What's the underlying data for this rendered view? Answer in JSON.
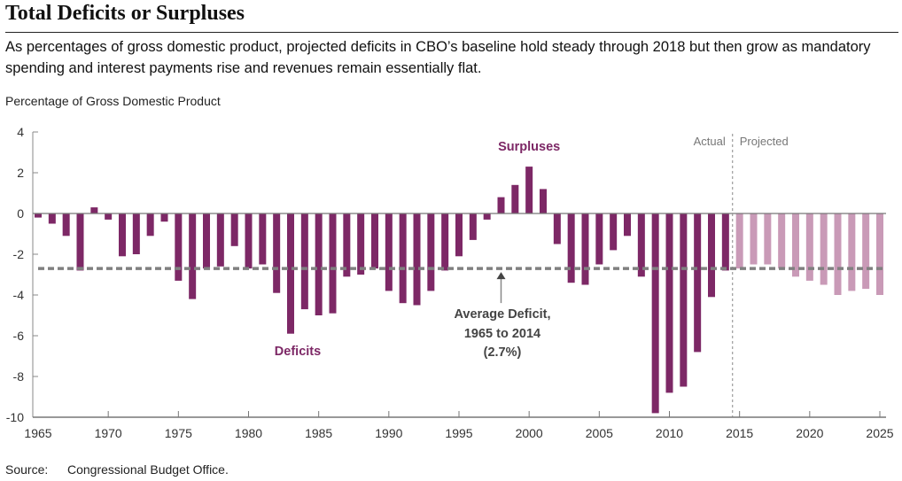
{
  "header": {
    "title": "Total Deficits or Surpluses",
    "subtitle": "As percentages of gross domestic product, projected deficits in CBO’s baseline hold steady through 2018 but then grow as mandatory spending and interest payments rise and revenues remain essentially flat."
  },
  "footer": {
    "source_label": "Source:",
    "source_text": "Congressional Budget Office."
  },
  "colors": {
    "actual": "#7d2866",
    "projected": "#c99ab7",
    "average_line": "#808080",
    "axis": "#666666",
    "annotation_text": "#7d2866",
    "average_text": "#444444"
  },
  "chart_data": {
    "type": "bar",
    "title": "Total Deficits or Surpluses",
    "xlabel": "",
    "ylabel": "Percentage of Gross Domestic Product",
    "ylim": [
      -10,
      4
    ],
    "yticks": [
      4,
      2,
      0,
      -2,
      -4,
      -6,
      -8,
      -10
    ],
    "ytick_labels": [
      "4",
      "2",
      "0",
      "-2",
      "-4",
      "-6",
      "-8",
      "-10"
    ],
    "xlim": [
      1965,
      2025
    ],
    "xticks": [
      1965,
      1970,
      1975,
      1980,
      1985,
      1990,
      1995,
      2000,
      2005,
      2010,
      2015,
      2020,
      2025
    ],
    "xtick_labels": [
      "1965",
      "1970",
      "1975",
      "1980",
      "1985",
      "1990",
      "1995",
      "2000",
      "2005",
      "2010",
      "2015",
      "2020",
      "2025"
    ],
    "grid": false,
    "series": [
      {
        "name": "Actual",
        "years": [
          1965,
          1966,
          1967,
          1968,
          1969,
          1970,
          1971,
          1972,
          1973,
          1974,
          1975,
          1976,
          1977,
          1978,
          1979,
          1980,
          1981,
          1982,
          1983,
          1984,
          1985,
          1986,
          1987,
          1988,
          1989,
          1990,
          1991,
          1992,
          1993,
          1994,
          1995,
          1996,
          1997,
          1998,
          1999,
          2000,
          2001,
          2002,
          2003,
          2004,
          2005,
          2006,
          2007,
          2008,
          2009,
          2010,
          2011,
          2012,
          2013,
          2014
        ],
        "values": [
          -0.2,
          -0.5,
          -1.1,
          -2.8,
          0.3,
          -0.3,
          -2.1,
          -2.0,
          -1.1,
          -0.4,
          -3.3,
          -4.2,
          -2.7,
          -2.6,
          -1.6,
          -2.7,
          -2.5,
          -3.9,
          -5.9,
          -4.7,
          -5.0,
          -4.9,
          -3.1,
          -3.0,
          -2.7,
          -3.8,
          -4.4,
          -4.5,
          -3.8,
          -2.8,
          -2.1,
          -1.3,
          -0.3,
          0.8,
          1.4,
          2.3,
          1.2,
          -1.5,
          -3.4,
          -3.5,
          -2.5,
          -1.8,
          -1.1,
          -3.1,
          -9.8,
          -8.8,
          -8.5,
          -6.8,
          -4.1,
          -2.8
        ]
      },
      {
        "name": "Projected",
        "years": [
          2015,
          2016,
          2017,
          2018,
          2019,
          2020,
          2021,
          2022,
          2023,
          2024,
          2025
        ],
        "values": [
          -2.7,
          -2.5,
          -2.5,
          -2.7,
          -3.1,
          -3.3,
          -3.5,
          -4.0,
          -3.8,
          -3.7,
          -4.0
        ]
      }
    ],
    "reference_line": {
      "name": "Average Deficit, 1965 to 2014",
      "value": -2.7,
      "style": "dashed"
    },
    "divider_year": 2014.5,
    "annotations": {
      "surpluses": "Surpluses",
      "deficits": "Deficits",
      "average_line1": "Average Deficit,",
      "average_line2": "1965 to 2014",
      "average_line3": "(2.7%)",
      "actual": "Actual",
      "projected": "Projected"
    }
  }
}
